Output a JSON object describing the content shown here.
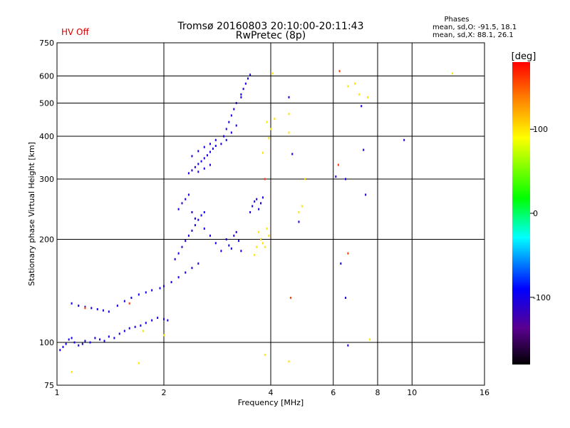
{
  "header": {
    "title_line1": "Tromsø 20160803 20:10:00-20:11:43",
    "title_line2": "RwPretec (8p)",
    "hv_status": "HV Off",
    "hv_color": "#d60000"
  },
  "phase_stats": {
    "title": "Phases",
    "o_mode": "mean, sd,O: -91.5, 18.1",
    "x_mode": "mean, sd,X:  88.1, 26.1"
  },
  "chart_data": {
    "type": "scatter",
    "xlabel": "Frequency [MHz]",
    "ylabel": "Stationary phase Virtual Height [km]",
    "x_scale": "log",
    "y_scale": "log",
    "xlim": [
      1,
      16
    ],
    "ylim": [
      75,
      750
    ],
    "x_ticks": [
      1,
      2,
      4,
      6,
      8,
      10,
      16
    ],
    "y_ticks": [
      75,
      100,
      200,
      300,
      400,
      500,
      600,
      750
    ],
    "grid_x": [
      2,
      4,
      6,
      8,
      10
    ],
    "grid_y": [
      100,
      200,
      300,
      400,
      500,
      600
    ],
    "grid": true,
    "colorbar": {
      "label": "[deg]",
      "range": [
        -180,
        180
      ],
      "ticks": [
        100,
        0,
        -100
      ],
      "colormap": "rainbow-black-to-red"
    },
    "series": [
      {
        "mode": "O",
        "phase_deg": -100,
        "points": [
          [
            1.02,
            95
          ],
          [
            1.04,
            97
          ],
          [
            1.06,
            99
          ],
          [
            1.08,
            102
          ],
          [
            1.1,
            103
          ],
          [
            1.12,
            100
          ],
          [
            1.15,
            98
          ],
          [
            1.18,
            99
          ],
          [
            1.2,
            101
          ],
          [
            1.24,
            100
          ],
          [
            1.28,
            103
          ],
          [
            1.32,
            102
          ],
          [
            1.36,
            101
          ],
          [
            1.4,
            104
          ],
          [
            1.45,
            103
          ],
          [
            1.5,
            106
          ],
          [
            1.55,
            108
          ],
          [
            1.6,
            110
          ],
          [
            1.66,
            111
          ],
          [
            1.72,
            112
          ],
          [
            1.78,
            114
          ],
          [
            1.85,
            116
          ],
          [
            1.92,
            118
          ],
          [
            2.0,
            117
          ],
          [
            2.05,
            116
          ],
          [
            1.1,
            130
          ],
          [
            1.15,
            128
          ],
          [
            1.2,
            127
          ],
          [
            1.25,
            126
          ],
          [
            1.3,
            125
          ],
          [
            1.35,
            124
          ],
          [
            1.4,
            123
          ],
          [
            1.48,
            128
          ],
          [
            1.55,
            132
          ],
          [
            1.62,
            135
          ],
          [
            1.7,
            138
          ],
          [
            1.78,
            140
          ],
          [
            1.85,
            142
          ],
          [
            1.95,
            144
          ],
          [
            2.0,
            146
          ],
          [
            2.1,
            150
          ],
          [
            2.2,
            155
          ],
          [
            2.3,
            160
          ],
          [
            2.4,
            165
          ],
          [
            2.5,
            170
          ],
          [
            2.15,
            175
          ],
          [
            2.2,
            182
          ],
          [
            2.25,
            190
          ],
          [
            2.3,
            198
          ],
          [
            2.35,
            205
          ],
          [
            2.4,
            212
          ],
          [
            2.45,
            220
          ],
          [
            2.5,
            228
          ],
          [
            2.55,
            235
          ],
          [
            2.6,
            240
          ],
          [
            2.2,
            245
          ],
          [
            2.25,
            255
          ],
          [
            2.3,
            262
          ],
          [
            2.35,
            270
          ],
          [
            2.4,
            240
          ],
          [
            2.45,
            230
          ],
          [
            2.6,
            215
          ],
          [
            2.7,
            205
          ],
          [
            2.8,
            195
          ],
          [
            2.9,
            185
          ],
          [
            3.0,
            200
          ],
          [
            3.05,
            192
          ],
          [
            3.1,
            188
          ],
          [
            3.15,
            205
          ],
          [
            3.2,
            210
          ],
          [
            3.25,
            198
          ],
          [
            3.3,
            185
          ],
          [
            2.35,
            312
          ],
          [
            2.4,
            318
          ],
          [
            2.45,
            325
          ],
          [
            2.5,
            332
          ],
          [
            2.55,
            338
          ],
          [
            2.6,
            345
          ],
          [
            2.65,
            352
          ],
          [
            2.7,
            360
          ],
          [
            2.75,
            368
          ],
          [
            2.8,
            375
          ],
          [
            2.4,
            350
          ],
          [
            2.5,
            362
          ],
          [
            2.6,
            372
          ],
          [
            2.7,
            380
          ],
          [
            2.8,
            390
          ],
          [
            2.5,
            315
          ],
          [
            2.6,
            322
          ],
          [
            2.7,
            330
          ],
          [
            2.9,
            380
          ],
          [
            2.95,
            400
          ],
          [
            3.0,
            420
          ],
          [
            3.05,
            440
          ],
          [
            3.1,
            460
          ],
          [
            3.15,
            480
          ],
          [
            3.2,
            500
          ],
          [
            3.0,
            390
          ],
          [
            3.1,
            410
          ],
          [
            3.2,
            430
          ],
          [
            3.3,
            530
          ],
          [
            3.35,
            550
          ],
          [
            3.4,
            570
          ],
          [
            3.45,
            590
          ],
          [
            3.5,
            605
          ],
          [
            3.3,
            520
          ],
          [
            3.5,
            240
          ],
          [
            3.55,
            250
          ],
          [
            3.6,
            258
          ],
          [
            3.65,
            262
          ],
          [
            3.7,
            245
          ],
          [
            3.75,
            255
          ],
          [
            3.8,
            265
          ],
          [
            4.5,
            520
          ],
          [
            4.6,
            355
          ],
          [
            6.1,
            305
          ],
          [
            6.5,
            300
          ],
          [
            6.3,
            170
          ],
          [
            6.5,
            135
          ],
          [
            7.2,
            490
          ],
          [
            7.3,
            365
          ],
          [
            7.4,
            270
          ],
          [
            9.5,
            390
          ],
          [
            6.6,
            98
          ],
          [
            4.8,
            225
          ]
        ]
      },
      {
        "mode": "X",
        "phase_deg": 100,
        "points": [
          [
            1.1,
            82
          ],
          [
            1.7,
            87
          ],
          [
            1.75,
            108
          ],
          [
            2.0,
            105
          ],
          [
            3.9,
            440
          ],
          [
            4.0,
            420
          ],
          [
            4.1,
            450
          ],
          [
            4.5,
            465
          ],
          [
            4.5,
            410
          ],
          [
            3.8,
            358
          ],
          [
            3.95,
            395
          ],
          [
            4.8,
            240
          ],
          [
            4.9,
            250
          ],
          [
            5.0,
            300
          ],
          [
            3.7,
            210
          ],
          [
            3.75,
            200
          ],
          [
            3.8,
            195
          ],
          [
            3.85,
            190
          ],
          [
            3.9,
            215
          ],
          [
            3.95,
            205
          ],
          [
            3.6,
            180
          ],
          [
            3.65,
            190
          ],
          [
            3.85,
            92
          ],
          [
            4.5,
            88
          ],
          [
            6.9,
            570
          ],
          [
            7.1,
            530
          ],
          [
            7.5,
            520
          ],
          [
            7.6,
            102
          ],
          [
            6.6,
            560
          ],
          [
            4.05,
            610
          ],
          [
            13.0,
            610
          ]
        ]
      },
      {
        "mode": "other",
        "phase_deg": 160,
        "points": [
          [
            1.2,
            126
          ],
          [
            6.2,
            330
          ],
          [
            6.25,
            620
          ],
          [
            6.6,
            182
          ],
          [
            4.55,
            135
          ],
          [
            1.6,
            130
          ],
          [
            3.85,
            300
          ]
        ]
      }
    ]
  }
}
